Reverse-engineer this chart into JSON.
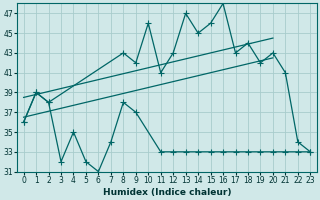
{
  "xlabel": "Humidex (Indice chaleur)",
  "background_color": "#d0e8e8",
  "grid_color": "#a8cccc",
  "line_color": "#006666",
  "xlim": [
    -0.5,
    23.5
  ],
  "ylim": [
    31,
    48
  ],
  "yticks": [
    31,
    33,
    35,
    37,
    39,
    41,
    43,
    45,
    47
  ],
  "xticks": [
    0,
    1,
    2,
    3,
    4,
    5,
    6,
    7,
    8,
    9,
    10,
    11,
    12,
    13,
    14,
    15,
    16,
    17,
    18,
    19,
    20,
    21,
    22,
    23
  ],
  "series_low": [
    36,
    39,
    38,
    32,
    35,
    32,
    31,
    34,
    38,
    37,
    null,
    33,
    33,
    33,
    33,
    33,
    33,
    33,
    33,
    33,
    33,
    33,
    33,
    33
  ],
  "series_high": [
    36,
    39,
    38,
    null,
    null,
    null,
    null,
    null,
    43,
    42,
    46,
    41,
    43,
    47,
    45,
    46,
    48,
    43,
    44,
    42,
    43,
    41,
    34,
    33
  ],
  "trend1_x": [
    0,
    20
  ],
  "trend1_y": [
    36.5,
    42.5
  ],
  "trend2_x": [
    0,
    20
  ],
  "trend2_y": [
    38.5,
    44.5
  ]
}
